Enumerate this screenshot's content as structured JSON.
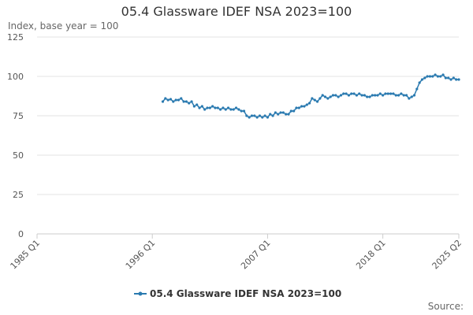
{
  "chart_data": {
    "type": "line",
    "title": "05.4 Glassware IDEF NSA 2023=100",
    "subtitle": "Index, base year = 100",
    "source": "Source:",
    "categories": [
      "1985 Q1",
      null,
      null,
      null,
      null,
      null,
      null,
      null,
      null,
      null,
      null,
      null,
      null,
      null,
      null,
      null,
      null,
      null,
      null,
      null,
      null,
      null,
      null,
      null,
      null,
      null,
      null,
      null,
      null,
      null,
      null,
      null,
      null,
      null,
      null,
      null,
      null,
      null,
      null,
      null,
      null,
      null,
      null,
      null,
      "1996 Q1",
      null,
      null,
      null,
      null,
      null,
      null,
      null,
      null,
      null,
      null,
      null,
      null,
      null,
      null,
      null,
      null,
      null,
      null,
      null,
      null,
      null,
      null,
      null,
      null,
      null,
      null,
      null,
      null,
      null,
      null,
      null,
      null,
      null,
      null,
      null,
      null,
      null,
      null,
      null,
      null,
      null,
      null,
      null,
      "2007 Q1",
      null,
      null,
      null,
      null,
      null,
      null,
      null,
      null,
      null,
      null,
      null,
      null,
      null,
      null,
      null,
      null,
      null,
      null,
      null,
      null,
      null,
      null,
      null,
      null,
      null,
      null,
      null,
      null,
      null,
      null,
      null,
      null,
      null,
      null,
      null,
      null,
      null,
      null,
      null,
      null,
      null,
      null,
      null,
      "2018 Q1",
      null,
      null,
      null,
      null,
      null,
      null,
      null,
      null,
      null,
      null,
      null,
      null,
      null,
      null,
      null,
      null,
      null,
      null,
      null,
      null,
      null,
      null,
      null,
      null,
      null,
      null,
      null,
      null,
      "2025 Q2"
    ],
    "series": [
      {
        "name": "05.4 Glassware IDEF NSA 2023=100",
        "color": "#2a7ab0",
        "values": [
          null,
          null,
          null,
          null,
          null,
          null,
          null,
          null,
          null,
          null,
          null,
          null,
          null,
          null,
          null,
          null,
          null,
          null,
          null,
          null,
          null,
          null,
          null,
          null,
          null,
          null,
          null,
          null,
          null,
          null,
          null,
          null,
          null,
          null,
          null,
          null,
          null,
          null,
          null,
          null,
          null,
          null,
          null,
          null,
          null,
          null,
          null,
          null,
          84,
          86,
          85,
          85.5,
          84,
          85,
          85,
          86,
          84,
          84,
          83,
          84,
          81,
          82,
          80,
          81,
          79,
          80,
          80,
          81,
          80,
          80,
          79,
          80,
          79,
          80,
          79,
          79,
          80,
          79,
          78,
          78,
          75,
          74,
          75,
          75,
          74,
          75,
          74,
          75,
          74,
          76,
          75,
          77,
          76,
          77,
          77,
          76,
          76,
          78,
          78,
          80,
          80,
          81,
          81,
          82,
          83,
          86,
          85,
          84,
          86,
          88,
          87,
          86,
          87,
          88,
          88,
          87,
          88,
          89,
          89,
          88,
          89,
          89,
          88,
          89,
          88,
          88,
          87,
          87,
          88,
          88,
          88,
          89,
          88,
          89,
          89,
          89,
          89,
          88,
          88,
          89,
          88,
          88,
          86,
          87,
          88,
          92,
          96,
          98,
          99,
          100,
          100,
          100,
          101,
          100,
          100,
          101,
          99,
          99,
          98,
          99,
          98,
          98
        ]
      }
    ],
    "ylim": [
      0,
      125
    ],
    "yticks": [
      0,
      25,
      50,
      75,
      100,
      125
    ],
    "grid": true,
    "legend": "bottom"
  }
}
